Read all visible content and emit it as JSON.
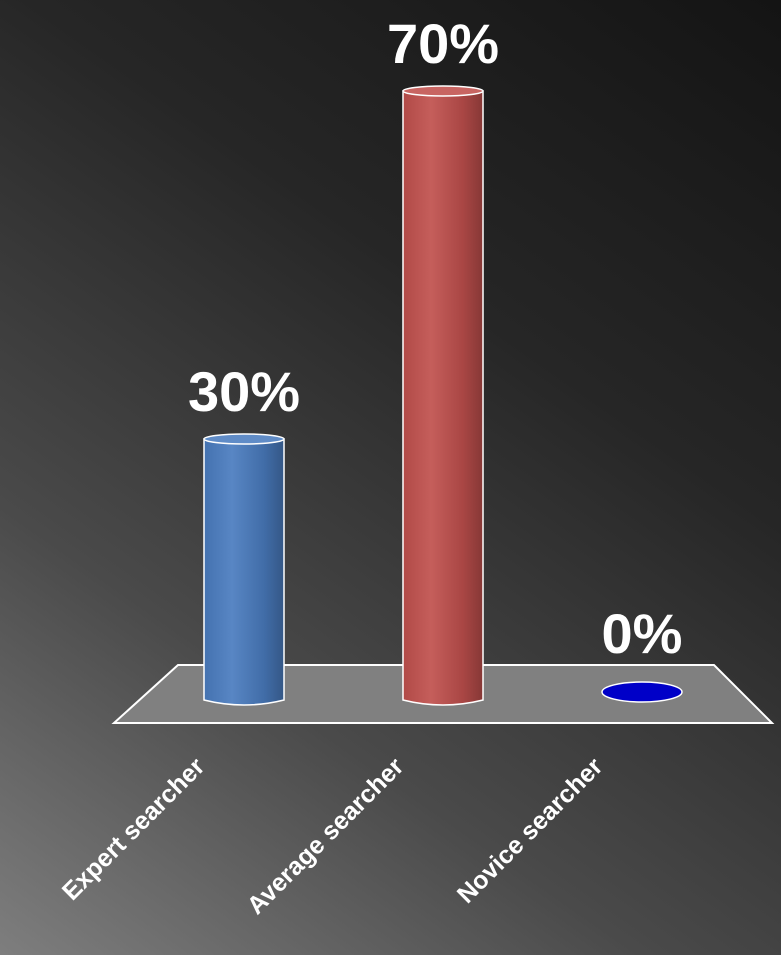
{
  "chart_data": {
    "type": "bar",
    "categories": [
      "Expert searcher",
      "Average searcher",
      "Novice searcher"
    ],
    "values": [
      30,
      70,
      0
    ],
    "data_labels": [
      "30%",
      "70%",
      "0%"
    ],
    "ylim": [
      0,
      70
    ],
    "grid": false,
    "legend": "none",
    "colors": [
      "#4a7cbf",
      "#c0504d",
      "#0000c8"
    ],
    "floor_color": "#7f7f7f",
    "outline_color": "#ffffff"
  }
}
